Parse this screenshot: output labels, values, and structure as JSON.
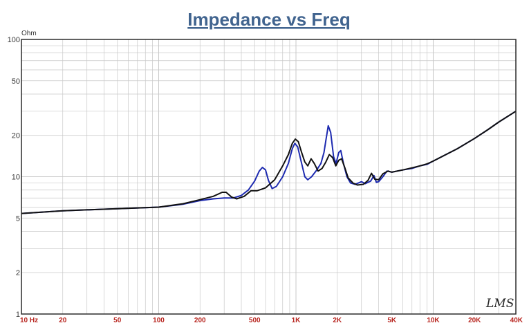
{
  "colors": {
    "title": "#41648f",
    "tick_label_x": "#b8251f",
    "grid": "#c8c8c8",
    "frame": "#2b2b2b",
    "series_blue": "#1d2ab0",
    "series_black": "#111111"
  },
  "watermark": "LMS",
  "chart_data": {
    "type": "line",
    "title": "Impedance vs Freq",
    "ylabel": "Ohm",
    "xlabel": "",
    "xscale": "log",
    "yscale": "log",
    "xlim": [
      10,
      40000
    ],
    "ylim": [
      1,
      100
    ],
    "grid": true,
    "legend": "none",
    "xticks": [
      {
        "value": 10,
        "label": "10 Hz"
      },
      {
        "value": 20,
        "label": "20"
      },
      {
        "value": 50,
        "label": "50"
      },
      {
        "value": 100,
        "label": "100"
      },
      {
        "value": 200,
        "label": "200"
      },
      {
        "value": 500,
        "label": "500"
      },
      {
        "value": 1000,
        "label": "1K"
      },
      {
        "value": 2000,
        "label": "2K"
      },
      {
        "value": 5000,
        "label": "5K"
      },
      {
        "value": 10000,
        "label": "10K"
      },
      {
        "value": 20000,
        "label": "20K"
      },
      {
        "value": 40000,
        "label": "40K"
      }
    ],
    "yticks": [
      {
        "value": 1,
        "label": "1"
      },
      {
        "value": 2,
        "label": "2"
      },
      {
        "value": 5,
        "label": "5"
      },
      {
        "value": 10,
        "label": "10"
      },
      {
        "value": 20,
        "label": "20"
      },
      {
        "value": 50,
        "label": "50"
      },
      {
        "value": 100,
        "label": "100"
      }
    ],
    "series": [
      {
        "color": "#1d2ab0",
        "points": [
          [
            10,
            5.4
          ],
          [
            20,
            5.65
          ],
          [
            50,
            5.85
          ],
          [
            100,
            6.0
          ],
          [
            150,
            6.3
          ],
          [
            200,
            6.7
          ],
          [
            250,
            6.9
          ],
          [
            300,
            7.0
          ],
          [
            350,
            7.0
          ],
          [
            400,
            7.3
          ],
          [
            450,
            8.0
          ],
          [
            500,
            9.3
          ],
          [
            540,
            11.0
          ],
          [
            570,
            11.7
          ],
          [
            600,
            11.2
          ],
          [
            630,
            9.4
          ],
          [
            670,
            8.2
          ],
          [
            720,
            8.5
          ],
          [
            800,
            10.0
          ],
          [
            880,
            12.5
          ],
          [
            940,
            16.0
          ],
          [
            980,
            17.5
          ],
          [
            1030,
            16.5
          ],
          [
            1100,
            12.5
          ],
          [
            1160,
            10.0
          ],
          [
            1220,
            9.5
          ],
          [
            1300,
            10.0
          ],
          [
            1400,
            11.0
          ],
          [
            1520,
            12.5
          ],
          [
            1600,
            15.0
          ],
          [
            1660,
            19.0
          ],
          [
            1720,
            23.5
          ],
          [
            1790,
            21.0
          ],
          [
            1880,
            14.0
          ],
          [
            1960,
            12.5
          ],
          [
            2050,
            15.0
          ],
          [
            2120,
            15.5
          ],
          [
            2220,
            12.5
          ],
          [
            2350,
            10.0
          ],
          [
            2500,
            9.0
          ],
          [
            2700,
            8.8
          ],
          [
            3000,
            9.2
          ],
          [
            3200,
            8.9
          ],
          [
            3500,
            9.3
          ],
          [
            3700,
            10.2
          ],
          [
            3850,
            9.1
          ],
          [
            4000,
            9.2
          ],
          [
            4300,
            10.0
          ],
          [
            4600,
            11.0
          ],
          [
            5000,
            10.8
          ],
          [
            6000,
            11.2
          ],
          [
            7000,
            11.5
          ],
          [
            8000,
            12.0
          ],
          [
            9000,
            12.3
          ],
          [
            10000,
            13.0
          ],
          [
            15000,
            16.0
          ],
          [
            20000,
            19.0
          ],
          [
            25000,
            22.0
          ],
          [
            30000,
            25.0
          ],
          [
            40000,
            30.0
          ]
        ]
      },
      {
        "color": "#111111",
        "points": [
          [
            10,
            5.4
          ],
          [
            20,
            5.65
          ],
          [
            50,
            5.85
          ],
          [
            100,
            6.0
          ],
          [
            150,
            6.35
          ],
          [
            200,
            6.8
          ],
          [
            250,
            7.2
          ],
          [
            290,
            7.7
          ],
          [
            310,
            7.7
          ],
          [
            340,
            7.1
          ],
          [
            370,
            6.9
          ],
          [
            420,
            7.2
          ],
          [
            470,
            7.9
          ],
          [
            520,
            7.9
          ],
          [
            600,
            8.3
          ],
          [
            700,
            9.5
          ],
          [
            800,
            12.0
          ],
          [
            880,
            14.5
          ],
          [
            940,
            17.5
          ],
          [
            990,
            18.8
          ],
          [
            1040,
            18.0
          ],
          [
            1100,
            15.0
          ],
          [
            1160,
            12.8
          ],
          [
            1220,
            12.0
          ],
          [
            1290,
            13.5
          ],
          [
            1360,
            12.5
          ],
          [
            1450,
            11.0
          ],
          [
            1550,
            11.5
          ],
          [
            1650,
            12.8
          ],
          [
            1750,
            14.5
          ],
          [
            1850,
            13.8
          ],
          [
            1950,
            12.0
          ],
          [
            2050,
            13.2
          ],
          [
            2150,
            13.5
          ],
          [
            2280,
            11.5
          ],
          [
            2400,
            9.8
          ],
          [
            2600,
            9.0
          ],
          [
            2800,
            8.7
          ],
          [
            3100,
            8.8
          ],
          [
            3350,
            9.4
          ],
          [
            3550,
            10.6
          ],
          [
            3750,
            9.6
          ],
          [
            4000,
            9.5
          ],
          [
            4300,
            10.5
          ],
          [
            4700,
            11.0
          ],
          [
            5000,
            10.8
          ],
          [
            6000,
            11.2
          ],
          [
            7000,
            11.6
          ],
          [
            8000,
            12.0
          ],
          [
            9000,
            12.4
          ],
          [
            10000,
            13.0
          ],
          [
            15000,
            16.0
          ],
          [
            20000,
            19.0
          ],
          [
            25000,
            22.0
          ],
          [
            30000,
            25.0
          ],
          [
            40000,
            30.0
          ]
        ]
      }
    ]
  }
}
